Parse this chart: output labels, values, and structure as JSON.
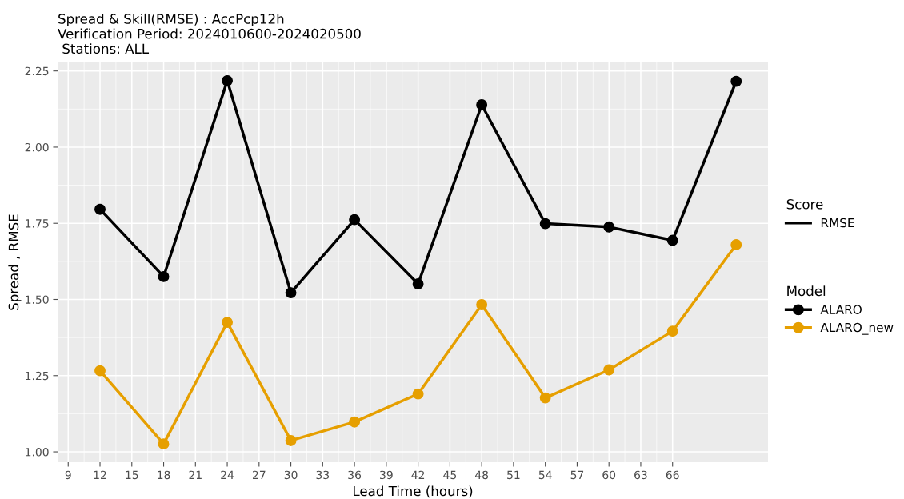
{
  "chart_data": {
    "type": "line",
    "title": "Spread & Skill(RMSE) : AccPcp12h\nVerification Period: 2024010600-2024020500\n Stations: ALL",
    "xlabel": "Lead Time (hours)",
    "ylabel": "Spread , RMSE",
    "legend_title": "Model",
    "annotations": [
      "Score",
      "RMSE"
    ],
    "x": [
      12,
      18,
      24,
      30,
      36,
      42,
      48,
      54,
      60,
      66,
      72
    ],
    "series": [
      {
        "name": "ALARO",
        "color": "#000000",
        "values": [
          1.796,
          1.575,
          2.218,
          1.522,
          1.762,
          1.551,
          2.139,
          1.749,
          1.738,
          1.694,
          2.216
        ]
      },
      {
        "name": "ALARO_new",
        "color": "#e69f00",
        "values": [
          1.266,
          1.026,
          1.425,
          1.037,
          1.098,
          1.19,
          1.483,
          1.177,
          1.269,
          1.396,
          1.68
        ]
      }
    ],
    "xlim": [
      8,
      75
    ],
    "xticks": [
      9,
      12,
      15,
      18,
      21,
      24,
      27,
      30,
      33,
      36,
      39,
      42,
      45,
      48,
      51,
      54,
      57,
      60,
      63,
      66
    ],
    "ylim": [
      0.966,
      2.278
    ],
    "yticks": [
      {
        "value": 1,
        "label": "1.00"
      },
      {
        "value": 1.25,
        "label": "1.25"
      },
      {
        "value": 1.5,
        "label": "1.50"
      },
      {
        "value": 1.75,
        "label": "1.75"
      },
      {
        "value": 2,
        "label": "2.00"
      },
      {
        "value": 2.25,
        "label": "2.25"
      }
    ],
    "grid": true,
    "legend": "right",
    "marker": "circle",
    "line_style": "solid"
  }
}
